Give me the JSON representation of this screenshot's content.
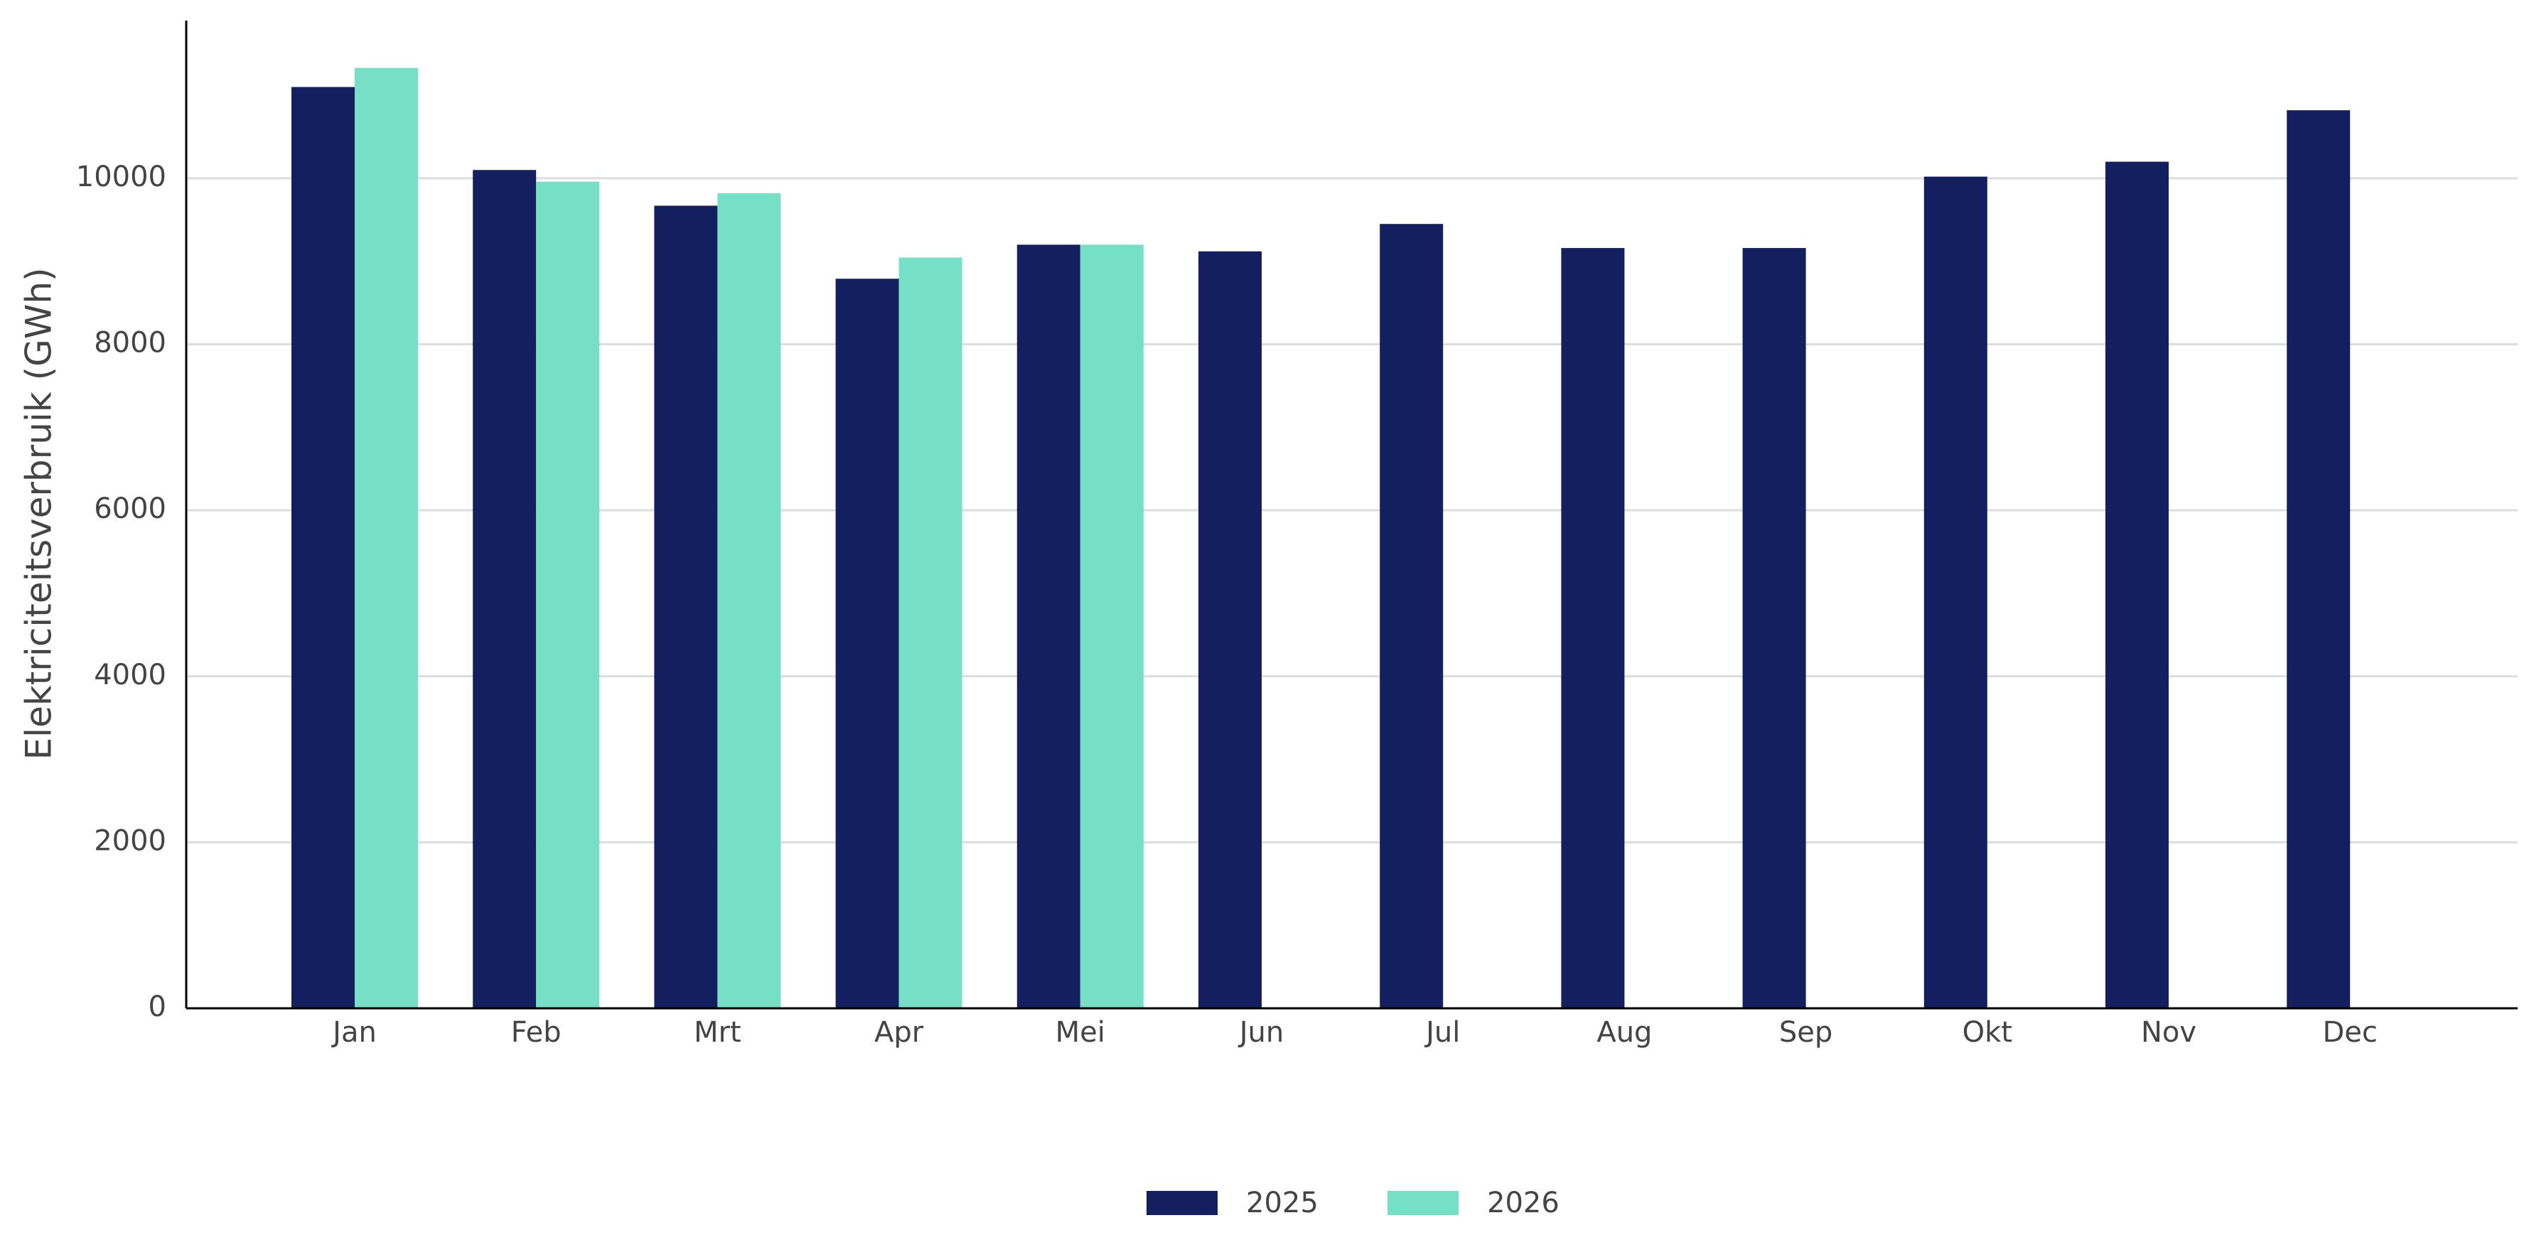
{
  "chart_data": {
    "type": "bar",
    "y_label": "Elektriciteitsverbruik (GWh)",
    "categories": [
      "Jan",
      "Feb",
      "Mrt",
      "Apr",
      "Mei",
      "Jun",
      "Jul",
      "Aug",
      "Sep",
      "Okt",
      "Nov",
      "Dec"
    ],
    "series": [
      {
        "name": "2025",
        "color": "#131f5e",
        "values": [
          11100,
          10100,
          9670,
          8790,
          9200,
          9120,
          9450,
          9160,
          9160,
          10020,
          10200,
          10820
        ]
      },
      {
        "name": "2026",
        "color": "#76e0c6",
        "values": [
          11330,
          9960,
          9820,
          9045,
          9200,
          null,
          null,
          null,
          null,
          null,
          null,
          null
        ]
      }
    ],
    "ylim": [
      0,
      11900
    ],
    "yticks": [
      0,
      2000,
      4000,
      6000,
      8000,
      10000
    ],
    "grid": true
  }
}
